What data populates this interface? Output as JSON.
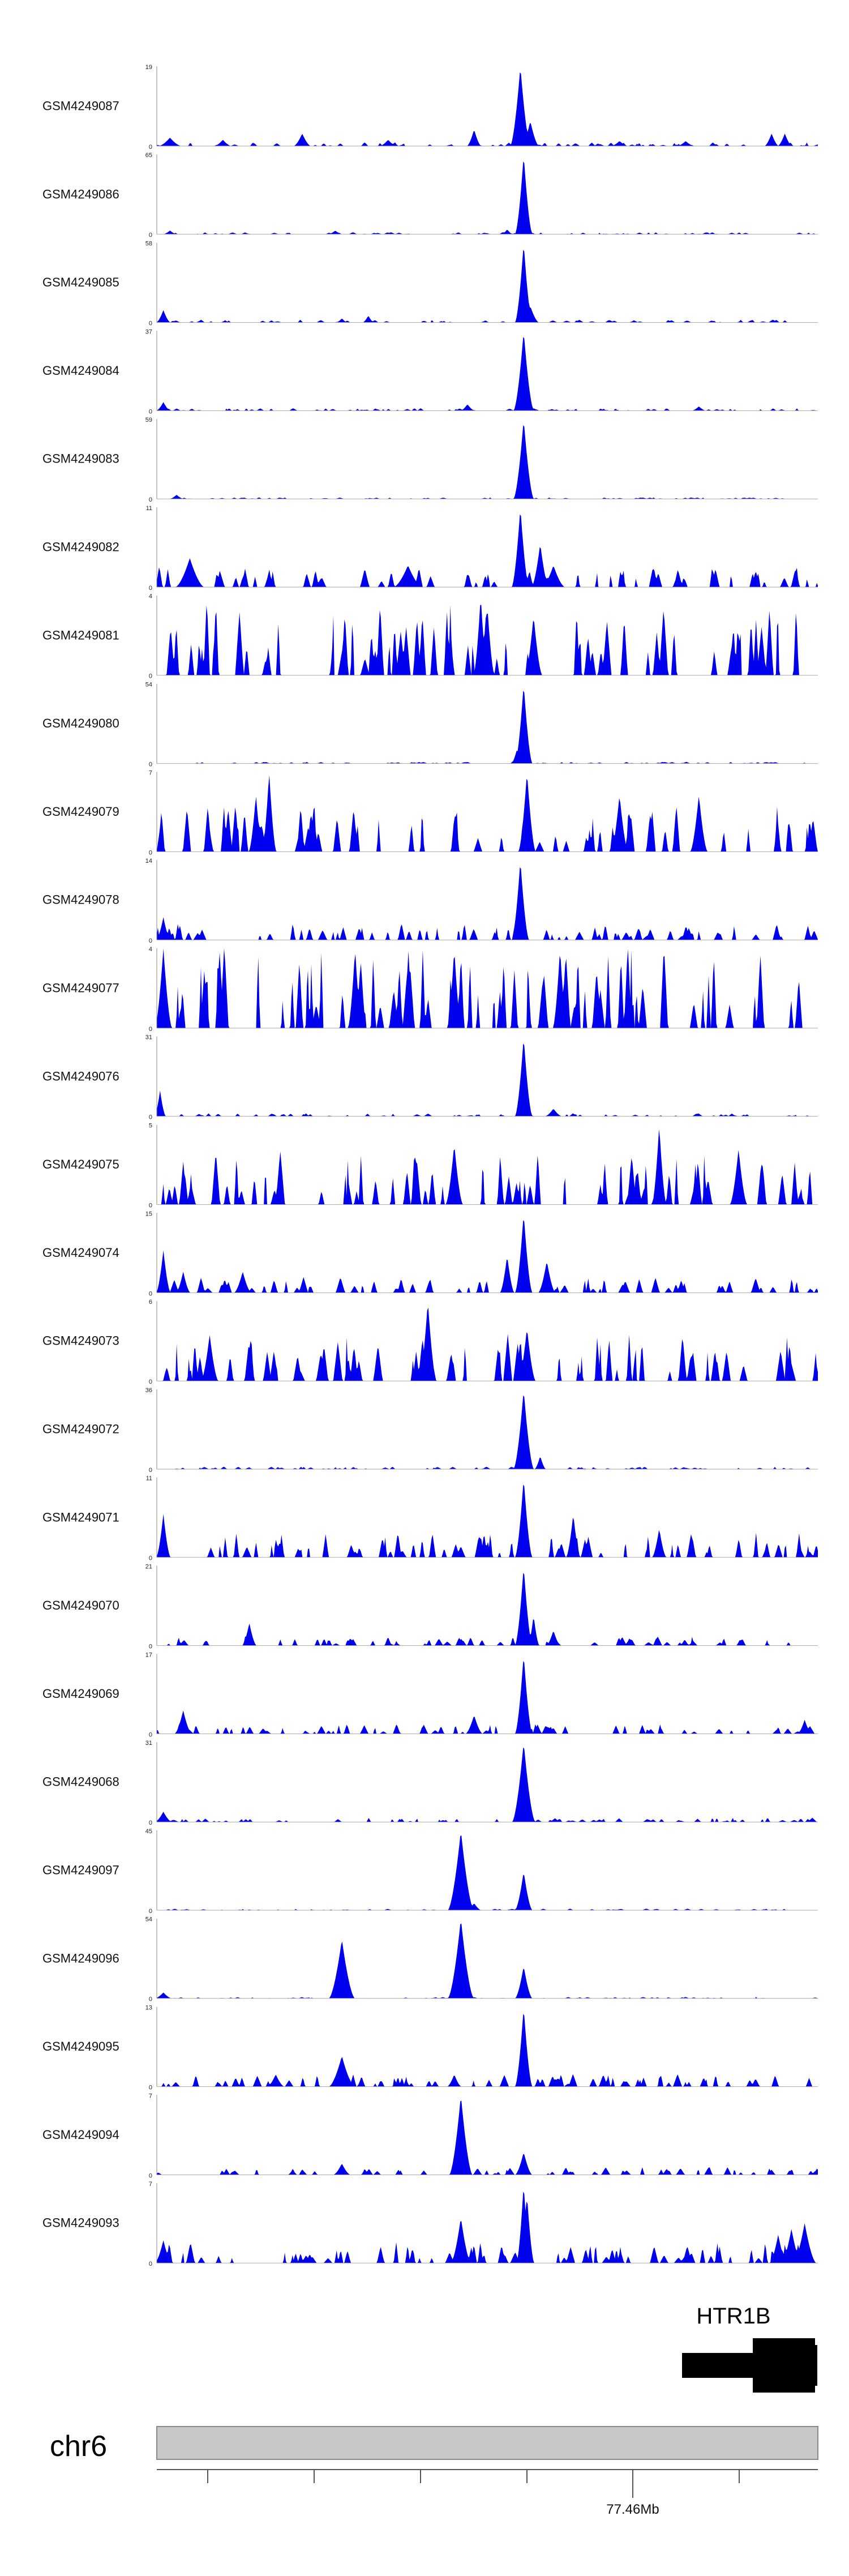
{
  "chart_data": {
    "type": "area",
    "xlim": [
      0,
      1
    ],
    "color": "#0000ee",
    "tracks": [
      {
        "name": "GSM4249087",
        "ymax": "19",
        "ymin": "0",
        "peak": 19,
        "peaks": [
          [
            0.55,
            19,
            0.007
          ],
          [
            0.565,
            6,
            0.006
          ],
          [
            0.48,
            4,
            0.005
          ],
          [
            0.02,
            2,
            0.008
          ],
          [
            0.22,
            3,
            0.006
          ],
          [
            0.93,
            3,
            0.005
          ],
          [
            0.95,
            3,
            0.005
          ],
          [
            0.1,
            1.5,
            0.006
          ],
          [
            0.35,
            1.5,
            0.006
          ],
          [
            0.7,
            1.2,
            0.006
          ],
          [
            0.8,
            1.2,
            0.006
          ]
        ],
        "seed": 1,
        "noise": 0.8
      },
      {
        "name": "GSM4249086",
        "ymax": "65",
        "ymin": "0",
        "peak": 65,
        "peaks": [
          [
            0.555,
            65,
            0.006
          ],
          [
            0.53,
            4,
            0.004
          ],
          [
            0.27,
            3,
            0.005
          ],
          [
            0.02,
            3,
            0.005
          ]
        ],
        "seed": 2,
        "noise": 1.5
      },
      {
        "name": "GSM4249085",
        "ymax": "58",
        "ymin": "0",
        "peak": 58,
        "peaks": [
          [
            0.555,
            58,
            0.006
          ],
          [
            0.565,
            12,
            0.006
          ],
          [
            0.01,
            9,
            0.005
          ],
          [
            0.32,
            5,
            0.004
          ],
          [
            0.28,
            3,
            0.004
          ]
        ],
        "seed": 3,
        "noise": 1.8
      },
      {
        "name": "GSM4249084",
        "ymax": "37",
        "ymin": "0",
        "peak": 37,
        "peaks": [
          [
            0.555,
            37,
            0.007
          ],
          [
            0.47,
            3,
            0.005
          ],
          [
            0.01,
            4,
            0.005
          ],
          [
            0.82,
            2,
            0.005
          ]
        ],
        "seed": 4,
        "noise": 1.0
      },
      {
        "name": "GSM4249083",
        "ymax": "59",
        "ymin": "0",
        "peak": 59,
        "peaks": [
          [
            0.555,
            59,
            0.007
          ],
          [
            0.03,
            3,
            0.005
          ]
        ],
        "seed": 5,
        "noise": 1.0
      },
      {
        "name": "GSM4249082",
        "ymax": "11",
        "ymin": "0",
        "peak": 11,
        "peaks": [
          [
            0.55,
            11,
            0.006
          ],
          [
            0.58,
            6,
            0.006
          ],
          [
            0.05,
            4,
            0.01
          ],
          [
            0.38,
            3,
            0.01
          ],
          [
            0.6,
            3,
            0.008
          ]
        ],
        "seed": 6,
        "noise": 2.5
      },
      {
        "name": "GSM4249081",
        "ymax": "4",
        "ymin": "0",
        "peak": 4,
        "peaks": [
          [
            0.49,
            4,
            0.005
          ],
          [
            0.5,
            3.5,
            0.005
          ],
          [
            0.57,
            3,
            0.006
          ]
        ],
        "seed": 7,
        "noise": 3.2
      },
      {
        "name": "GSM4249080",
        "ymax": "54",
        "ymin": "0",
        "peak": 54,
        "peaks": [
          [
            0.555,
            54,
            0.006
          ],
          [
            0.545,
            10,
            0.004
          ]
        ],
        "seed": 8,
        "noise": 1.0
      },
      {
        "name": "GSM4249079",
        "ymax": "7",
        "ymin": "0",
        "peak": 7,
        "peaks": [
          [
            0.56,
            7,
            0.006
          ],
          [
            0.17,
            7,
            0.005
          ],
          [
            0.15,
            5,
            0.005
          ],
          [
            0.82,
            5,
            0.006
          ],
          [
            0.7,
            5,
            0.006
          ]
        ],
        "seed": 9,
        "noise": 3.5
      },
      {
        "name": "GSM4249078",
        "ymax": "14",
        "ymin": "0",
        "peak": 14,
        "peaks": [
          [
            0.55,
            14,
            0.006
          ],
          [
            0.01,
            4,
            0.005
          ]
        ],
        "seed": 10,
        "noise": 2.5
      },
      {
        "name": "GSM4249077",
        "ymax": "4",
        "ymin": "0",
        "peak": 4,
        "peaks": [
          [
            0.01,
            4,
            0.006
          ],
          [
            0.3,
            4,
            0.005
          ],
          [
            0.45,
            4,
            0.005
          ],
          [
            0.61,
            4,
            0.005
          ]
        ],
        "seed": 11,
        "noise": 3.6
      },
      {
        "name": "GSM4249076",
        "ymax": "31",
        "ymin": "0",
        "peak": 31,
        "peaks": [
          [
            0.555,
            31,
            0.006
          ],
          [
            0.005,
            10,
            0.004
          ],
          [
            0.6,
            3,
            0.006
          ]
        ],
        "seed": 12,
        "noise": 1.0
      },
      {
        "name": "GSM4249075",
        "ymax": "5",
        "ymin": "0",
        "peak": 5,
        "peaks": [
          [
            0.76,
            5,
            0.005
          ],
          [
            0.45,
            3.8,
            0.006
          ],
          [
            0.88,
            3.5,
            0.006
          ]
        ],
        "seed": 13,
        "noise": 3.0
      },
      {
        "name": "GSM4249074",
        "ymax": "15",
        "ymin": "0",
        "peak": 15,
        "peaks": [
          [
            0.555,
            15,
            0.006
          ],
          [
            0.53,
            7,
            0.005
          ],
          [
            0.59,
            6,
            0.006
          ],
          [
            0.01,
            8,
            0.005
          ],
          [
            0.04,
            4,
            0.005
          ],
          [
            0.13,
            4,
            0.006
          ]
        ],
        "seed": 14,
        "noise": 2.5
      },
      {
        "name": "GSM4249073",
        "ymax": "6",
        "ymin": "0",
        "peak": 6,
        "peaks": [
          [
            0.41,
            6,
            0.006
          ],
          [
            0.56,
            4,
            0.006
          ],
          [
            0.08,
            3.5,
            0.006
          ]
        ],
        "seed": 15,
        "noise": 3.0
      },
      {
        "name": "GSM4249072",
        "ymax": "36",
        "ymin": "0",
        "peak": 36,
        "peaks": [
          [
            0.555,
            36,
            0.007
          ],
          [
            0.58,
            6,
            0.004
          ]
        ],
        "seed": 16,
        "noise": 1.0
      },
      {
        "name": "GSM4249071",
        "ymax": "11",
        "ymin": "0",
        "peak": 11,
        "peaks": [
          [
            0.555,
            11,
            0.006
          ],
          [
            0.63,
            6,
            0.005
          ],
          [
            0.76,
            4,
            0.005
          ],
          [
            0.01,
            6,
            0.005
          ]
        ],
        "seed": 17,
        "noise": 3.0
      },
      {
        "name": "GSM4249070",
        "ymax": "21",
        "ymin": "0",
        "peak": 21,
        "peaks": [
          [
            0.555,
            21,
            0.006
          ],
          [
            0.57,
            8,
            0.004
          ],
          [
            0.14,
            6,
            0.005
          ],
          [
            0.6,
            4,
            0.005
          ]
        ],
        "seed": 18,
        "noise": 2.0
      },
      {
        "name": "GSM4249069",
        "ymax": "17",
        "ymin": "0",
        "peak": 17,
        "peaks": [
          [
            0.555,
            17,
            0.006
          ],
          [
            0.04,
            5,
            0.006
          ],
          [
            0.48,
            4,
            0.006
          ],
          [
            0.98,
            3,
            0.005
          ]
        ],
        "seed": 19,
        "noise": 1.8
      },
      {
        "name": "GSM4249068",
        "ymax": "31",
        "ymin": "0",
        "peak": 31,
        "peaks": [
          [
            0.555,
            31,
            0.008
          ],
          [
            0.01,
            4,
            0.006
          ]
        ],
        "seed": 20,
        "noise": 1.5
      },
      {
        "name": "GSM4249097",
        "ymax": "45",
        "ymin": "0",
        "peak": 45,
        "peaks": [
          [
            0.46,
            45,
            0.009
          ],
          [
            0.555,
            22,
            0.006
          ],
          [
            0.48,
            4,
            0.005
          ]
        ],
        "seed": 21,
        "noise": 0.8
      },
      {
        "name": "GSM4249096",
        "ymax": "54",
        "ymin": "0",
        "peak": 54,
        "peaks": [
          [
            0.46,
            54,
            0.009
          ],
          [
            0.28,
            40,
            0.009
          ],
          [
            0.555,
            22,
            0.006
          ],
          [
            0.01,
            4,
            0.006
          ]
        ],
        "seed": 22,
        "noise": 0.8
      },
      {
        "name": "GSM4249095",
        "ymax": "13",
        "ymin": "0",
        "peak": 13,
        "peaks": [
          [
            0.555,
            13,
            0.006
          ],
          [
            0.28,
            5,
            0.009
          ],
          [
            0.18,
            2,
            0.006
          ],
          [
            0.45,
            2,
            0.005
          ]
        ],
        "seed": 23,
        "noise": 1.8
      },
      {
        "name": "GSM4249094",
        "ymax": "7",
        "ymin": "0",
        "peak": 7,
        "peaks": [
          [
            0.46,
            7,
            0.008
          ],
          [
            0.555,
            2,
            0.006
          ],
          [
            0.28,
            1,
            0.006
          ]
        ],
        "seed": 24,
        "noise": 0.6
      },
      {
        "name": "GSM4249093",
        "ymax": "7",
        "ymin": "0",
        "peak": 7,
        "peaks": [
          [
            0.555,
            7,
            0.005
          ],
          [
            0.56,
            6,
            0.005
          ],
          [
            0.46,
            4,
            0.007
          ],
          [
            0.98,
            3.5,
            0.008
          ],
          [
            0.96,
            3,
            0.007
          ],
          [
            0.94,
            2.5,
            0.006
          ],
          [
            0.01,
            2,
            0.006
          ]
        ],
        "seed": 25,
        "noise": 1.6
      }
    ],
    "gene": {
      "name": "HTR1B",
      "strand": "minus"
    },
    "chromosome": {
      "name": "chr6",
      "tick_label": "77.46Mb"
    }
  }
}
